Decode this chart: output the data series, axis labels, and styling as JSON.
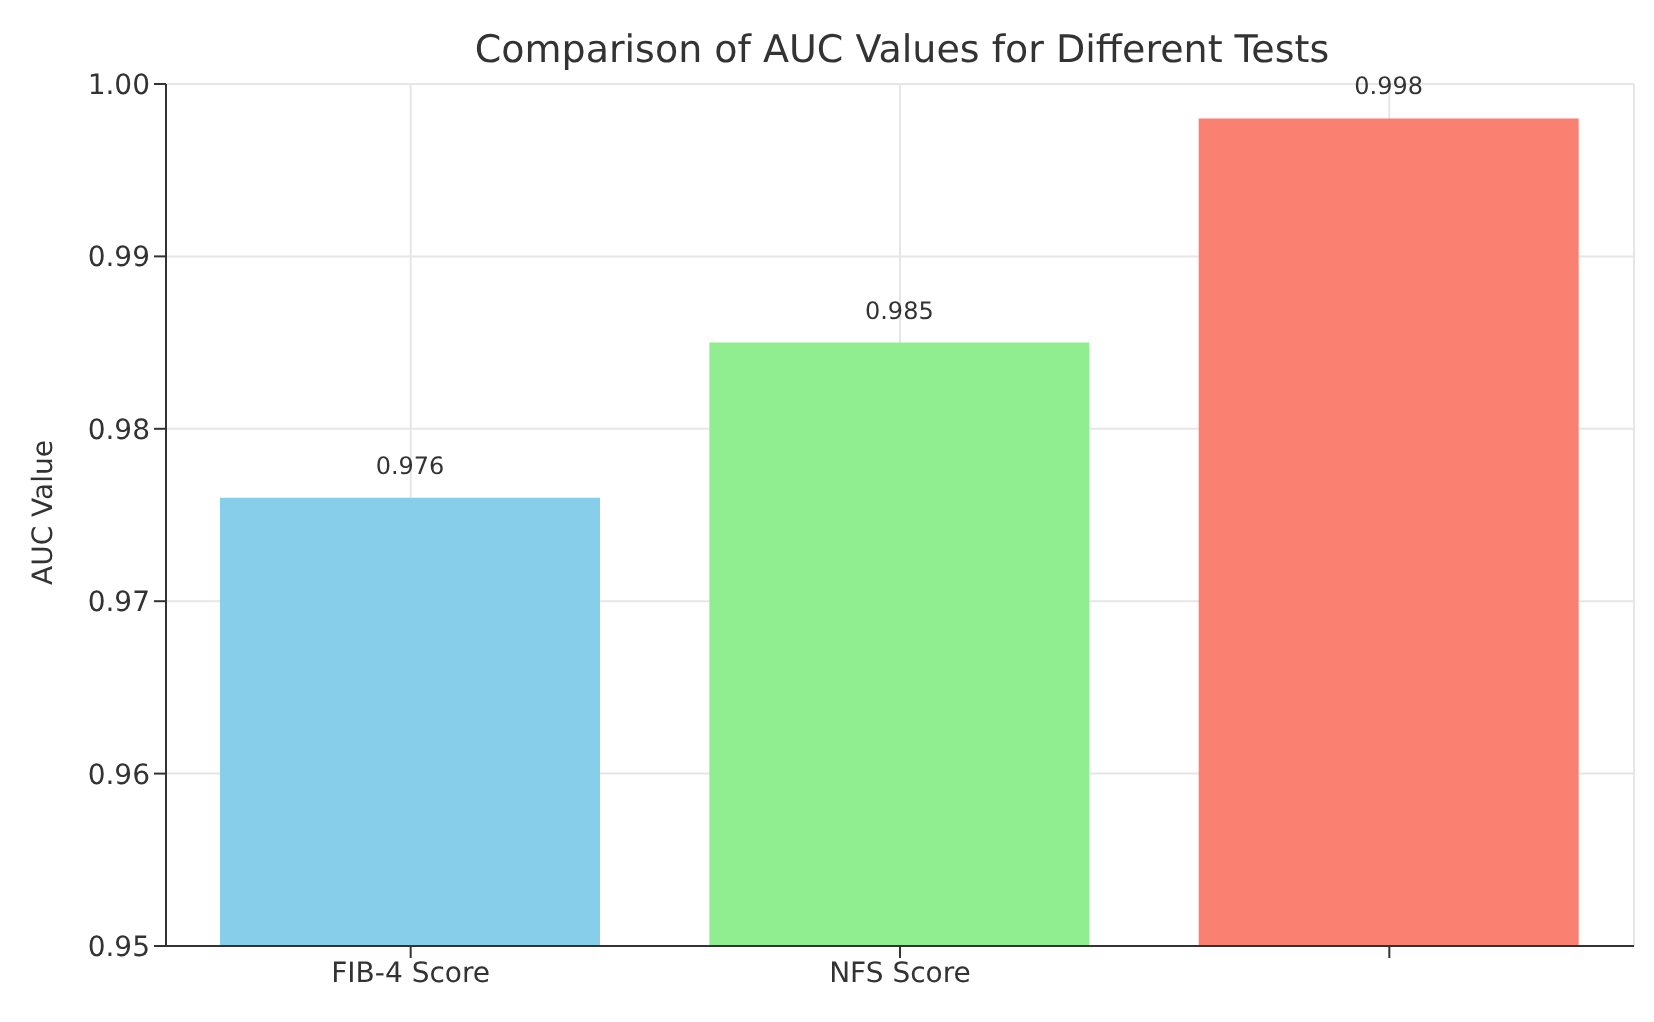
{
  "chart_data": {
    "type": "bar",
    "title": "Comparison of AUC Values for Different Tests",
    "ylabel": "AUC Value",
    "categories": [
      "FIB-4 Score",
      "NFS Score",
      null
    ],
    "values": [
      0.976,
      0.985,
      0.998
    ],
    "colors": [
      "#87ceeb",
      "#90ee90",
      "#fa8072"
    ],
    "ylim": [
      0.95,
      1.0
    ],
    "yticks": [
      0.95,
      0.96,
      0.97,
      0.98,
      0.99,
      {
        "value": 1.0,
        "label": "1.00"
      }
    ],
    "grid": true,
    "data_labels": true
  }
}
